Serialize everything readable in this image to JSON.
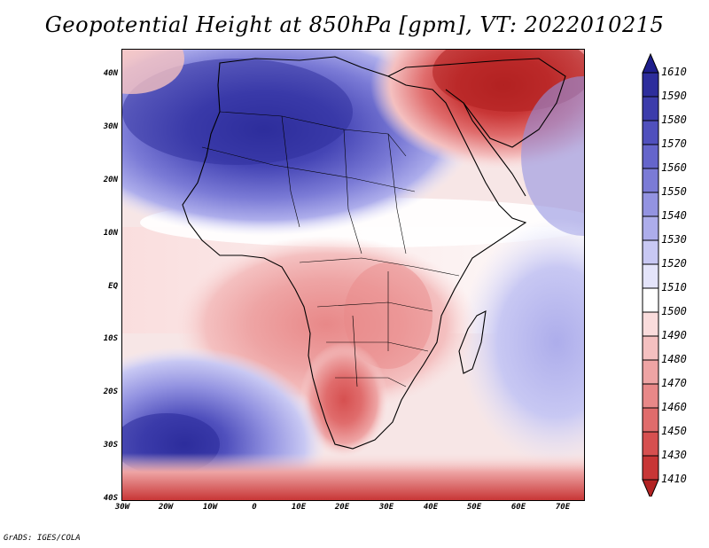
{
  "title": "Geopotential Height at 850hPa [gpm], VT: 2022010215",
  "credit": "GrADS: IGES/COLA",
  "map": {
    "lat_labels": [
      "40N",
      "30N",
      "20N",
      "10N",
      "EQ",
      "10S",
      "20S",
      "30S",
      "40S"
    ],
    "lon_labels": [
      "30W",
      "20W",
      "10W",
      "0",
      "10E",
      "20E",
      "30E",
      "40E",
      "50E",
      "60E",
      "70E"
    ]
  },
  "colorbar": {
    "labels": [
      "1610",
      "1590",
      "1580",
      "1570",
      "1560",
      "1550",
      "1540",
      "1530",
      "1520",
      "1510",
      "1500",
      "1490",
      "1480",
      "1470",
      "1460",
      "1450",
      "1430",
      "1410"
    ],
    "colors": [
      "#1e1e8c",
      "#2d2d9c",
      "#3c3cab",
      "#5050bd",
      "#6565cb",
      "#7b7bd6",
      "#9393e1",
      "#adadeb",
      "#c8c8f3",
      "#e4e4fa",
      "#ffffff",
      "#fadcdc",
      "#f4c0c0",
      "#eea4a4",
      "#e88888",
      "#e06c6c",
      "#d65050",
      "#c83636",
      "#b22222"
    ]
  }
}
